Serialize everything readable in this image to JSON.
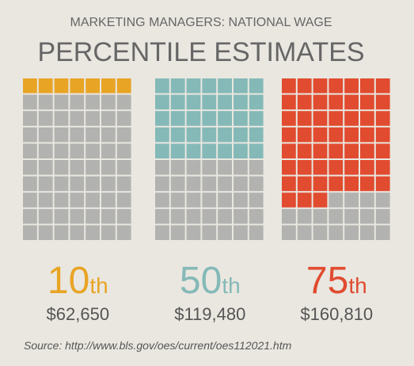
{
  "chart_data": {
    "type": "waffle",
    "subtitle": "MARKETING MANAGERS: NATIONAL WAGE",
    "title": "PERCENTILE ESTIMATES",
    "categories": [
      "10th",
      "50th",
      "75th"
    ],
    "values": [
      10,
      50,
      75
    ],
    "colors": [
      "#e8a425",
      "#84b9b7",
      "#e14b2f"
    ],
    "wages": [
      {
        "value": 62650,
        "label": "$62,650"
      },
      {
        "value": 119480,
        "label": "$119,480"
      },
      {
        "value": 160810,
        "label": "$160,810"
      }
    ],
    "empty_color": "#b2b2b0",
    "source": "Source: http://www.bls.gov/oes/current/oes112021.htm"
  }
}
